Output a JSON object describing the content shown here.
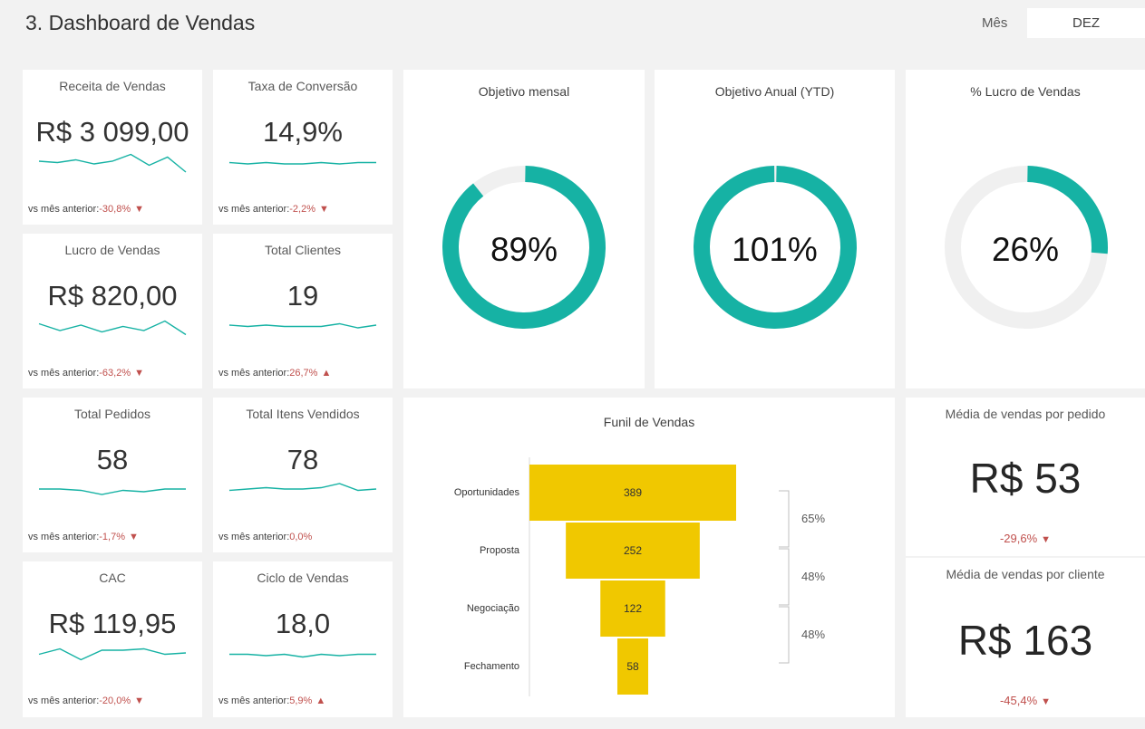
{
  "header": {
    "title": "3. Dashboard de Vendas",
    "month_label": "Mês",
    "month_value": "DEZ"
  },
  "colors": {
    "accent": "#16b2a4",
    "track": "#f0f0f0",
    "funnel": "#f0c800",
    "negative": "#c0504d"
  },
  "kpis": [
    {
      "title": "Receita de Vendas",
      "value": "R$ 3 099,00",
      "cmp_label": "vs mês anterior:",
      "cmp_value": "-30,8%",
      "trend": "down",
      "spark": [
        10,
        9,
        11,
        8,
        10,
        15,
        7,
        13,
        2
      ]
    },
    {
      "title": "Taxa de Conversão",
      "value": "14,9%",
      "cmp_label": "vs mês anterior:",
      "cmp_value": "-2,2%",
      "trend": "down",
      "spark": [
        9,
        8,
        9,
        8,
        8,
        9,
        8,
        9,
        9
      ]
    },
    {
      "title": "Lucro de Vendas",
      "value": "R$ 820,00",
      "cmp_label": "vs mês anterior:",
      "cmp_value": "-63,2%",
      "trend": "down",
      "spark": [
        11,
        6,
        10,
        5,
        9,
        6,
        13,
        3
      ]
    },
    {
      "title": "Total Clientes",
      "value": "19",
      "cmp_label": "vs mês anterior:",
      "cmp_value": "26,7%",
      "trend": "up",
      "spark": [
        10,
        9,
        10,
        9,
        9,
        9,
        11,
        8,
        10
      ]
    },
    {
      "title": "Total Pedidos",
      "value": "58",
      "cmp_label": "vs mês anterior:",
      "cmp_value": "-1,7%",
      "trend": "down",
      "spark": [
        10,
        10,
        9,
        6,
        9,
        8,
        10,
        10
      ]
    },
    {
      "title": "Total Itens Vendidos",
      "value": "78",
      "cmp_label": "vs mês anterior:",
      "cmp_value": "0,0%",
      "trend": "neutral",
      "spark": [
        9,
        10,
        11,
        10,
        10,
        11,
        14,
        9,
        10
      ]
    },
    {
      "title": "CAC",
      "value": "R$ 119,95",
      "cmp_label": "vs mês anterior:",
      "cmp_value": "-20,0%",
      "trend": "down",
      "spark": [
        9,
        13,
        5,
        12,
        12,
        13,
        9,
        10
      ]
    },
    {
      "title": "Ciclo de Vendas",
      "value": "18,0",
      "cmp_label": "vs mês anterior:",
      "cmp_value": "5,9%",
      "trend": "up",
      "spark": [
        9,
        9,
        8,
        9,
        7,
        9,
        8,
        9,
        9
      ]
    }
  ],
  "donuts": [
    {
      "title": "Objetivo mensal",
      "pct_label": "89%",
      "fraction": 0.89
    },
    {
      "title": "Objetivo Anual (YTD)",
      "pct_label": "101%",
      "fraction": 1.0
    },
    {
      "title": "% Lucro de Vendas",
      "pct_label": "26%",
      "fraction": 0.26
    }
  ],
  "funnel": {
    "title": "Funil de Vendas",
    "stages": [
      {
        "label": "Oportunidades",
        "value": 389
      },
      {
        "label": "Proposta",
        "value": 252
      },
      {
        "label": "Negociação",
        "value": 122
      },
      {
        "label": "Fechamento",
        "value": 58
      }
    ],
    "conversions": [
      "65%",
      "48%",
      "48%"
    ]
  },
  "averages": [
    {
      "title": "Média de vendas por pedido",
      "value": "R$ 53",
      "cmp": "-29,6%",
      "trend": "down"
    },
    {
      "title": "Média de vendas por cliente",
      "value": "R$ 163",
      "cmp": "-45,4%",
      "trend": "down"
    }
  ]
}
